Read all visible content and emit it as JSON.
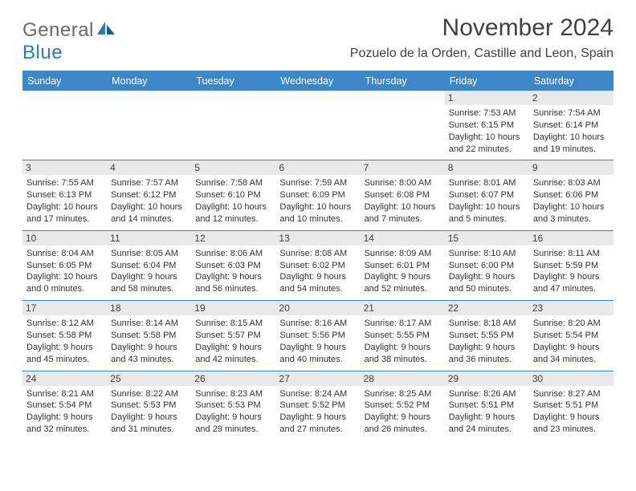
{
  "logo": {
    "text1": "General",
    "text2": "Blue"
  },
  "title": "November 2024",
  "location": "Pozuelo de la Orden, Castille and Leon, Spain",
  "colors": {
    "header_bg": "#3b87c8",
    "header_fg": "#ffffff",
    "daynum_bg": "#e9e9e9",
    "text": "#404040",
    "row_border": "#3b87c8"
  },
  "day_names": [
    "Sunday",
    "Monday",
    "Tuesday",
    "Wednesday",
    "Thursday",
    "Friday",
    "Saturday"
  ],
  "weeks": [
    [
      null,
      null,
      null,
      null,
      null,
      {
        "n": "1",
        "sunrise": "Sunrise: 7:53 AM",
        "sunset": "Sunset: 6:15 PM",
        "daylight1": "Daylight: 10 hours",
        "daylight2": "and 22 minutes."
      },
      {
        "n": "2",
        "sunrise": "Sunrise: 7:54 AM",
        "sunset": "Sunset: 6:14 PM",
        "daylight1": "Daylight: 10 hours",
        "daylight2": "and 19 minutes."
      }
    ],
    [
      {
        "n": "3",
        "sunrise": "Sunrise: 7:55 AM",
        "sunset": "Sunset: 6:13 PM",
        "daylight1": "Daylight: 10 hours",
        "daylight2": "and 17 minutes."
      },
      {
        "n": "4",
        "sunrise": "Sunrise: 7:57 AM",
        "sunset": "Sunset: 6:12 PM",
        "daylight1": "Daylight: 10 hours",
        "daylight2": "and 14 minutes."
      },
      {
        "n": "5",
        "sunrise": "Sunrise: 7:58 AM",
        "sunset": "Sunset: 6:10 PM",
        "daylight1": "Daylight: 10 hours",
        "daylight2": "and 12 minutes."
      },
      {
        "n": "6",
        "sunrise": "Sunrise: 7:59 AM",
        "sunset": "Sunset: 6:09 PM",
        "daylight1": "Daylight: 10 hours",
        "daylight2": "and 10 minutes."
      },
      {
        "n": "7",
        "sunrise": "Sunrise: 8:00 AM",
        "sunset": "Sunset: 6:08 PM",
        "daylight1": "Daylight: 10 hours",
        "daylight2": "and 7 minutes."
      },
      {
        "n": "8",
        "sunrise": "Sunrise: 8:01 AM",
        "sunset": "Sunset: 6:07 PM",
        "daylight1": "Daylight: 10 hours",
        "daylight2": "and 5 minutes."
      },
      {
        "n": "9",
        "sunrise": "Sunrise: 8:03 AM",
        "sunset": "Sunset: 6:06 PM",
        "daylight1": "Daylight: 10 hours",
        "daylight2": "and 3 minutes."
      }
    ],
    [
      {
        "n": "10",
        "sunrise": "Sunrise: 8:04 AM",
        "sunset": "Sunset: 6:05 PM",
        "daylight1": "Daylight: 10 hours",
        "daylight2": "and 0 minutes."
      },
      {
        "n": "11",
        "sunrise": "Sunrise: 8:05 AM",
        "sunset": "Sunset: 6:04 PM",
        "daylight1": "Daylight: 9 hours",
        "daylight2": "and 58 minutes."
      },
      {
        "n": "12",
        "sunrise": "Sunrise: 8:06 AM",
        "sunset": "Sunset: 6:03 PM",
        "daylight1": "Daylight: 9 hours",
        "daylight2": "and 56 minutes."
      },
      {
        "n": "13",
        "sunrise": "Sunrise: 8:08 AM",
        "sunset": "Sunset: 6:02 PM",
        "daylight1": "Daylight: 9 hours",
        "daylight2": "and 54 minutes."
      },
      {
        "n": "14",
        "sunrise": "Sunrise: 8:09 AM",
        "sunset": "Sunset: 6:01 PM",
        "daylight1": "Daylight: 9 hours",
        "daylight2": "and 52 minutes."
      },
      {
        "n": "15",
        "sunrise": "Sunrise: 8:10 AM",
        "sunset": "Sunset: 6:00 PM",
        "daylight1": "Daylight: 9 hours",
        "daylight2": "and 50 minutes."
      },
      {
        "n": "16",
        "sunrise": "Sunrise: 8:11 AM",
        "sunset": "Sunset: 5:59 PM",
        "daylight1": "Daylight: 9 hours",
        "daylight2": "and 47 minutes."
      }
    ],
    [
      {
        "n": "17",
        "sunrise": "Sunrise: 8:12 AM",
        "sunset": "Sunset: 5:58 PM",
        "daylight1": "Daylight: 9 hours",
        "daylight2": "and 45 minutes."
      },
      {
        "n": "18",
        "sunrise": "Sunrise: 8:14 AM",
        "sunset": "Sunset: 5:58 PM",
        "daylight1": "Daylight: 9 hours",
        "daylight2": "and 43 minutes."
      },
      {
        "n": "19",
        "sunrise": "Sunrise: 8:15 AM",
        "sunset": "Sunset: 5:57 PM",
        "daylight1": "Daylight: 9 hours",
        "daylight2": "and 42 minutes."
      },
      {
        "n": "20",
        "sunrise": "Sunrise: 8:16 AM",
        "sunset": "Sunset: 5:56 PM",
        "daylight1": "Daylight: 9 hours",
        "daylight2": "and 40 minutes."
      },
      {
        "n": "21",
        "sunrise": "Sunrise: 8:17 AM",
        "sunset": "Sunset: 5:55 PM",
        "daylight1": "Daylight: 9 hours",
        "daylight2": "and 38 minutes."
      },
      {
        "n": "22",
        "sunrise": "Sunrise: 8:18 AM",
        "sunset": "Sunset: 5:55 PM",
        "daylight1": "Daylight: 9 hours",
        "daylight2": "and 36 minutes."
      },
      {
        "n": "23",
        "sunrise": "Sunrise: 8:20 AM",
        "sunset": "Sunset: 5:54 PM",
        "daylight1": "Daylight: 9 hours",
        "daylight2": "and 34 minutes."
      }
    ],
    [
      {
        "n": "24",
        "sunrise": "Sunrise: 8:21 AM",
        "sunset": "Sunset: 5:54 PM",
        "daylight1": "Daylight: 9 hours",
        "daylight2": "and 32 minutes."
      },
      {
        "n": "25",
        "sunrise": "Sunrise: 8:22 AM",
        "sunset": "Sunset: 5:53 PM",
        "daylight1": "Daylight: 9 hours",
        "daylight2": "and 31 minutes."
      },
      {
        "n": "26",
        "sunrise": "Sunrise: 8:23 AM",
        "sunset": "Sunset: 5:53 PM",
        "daylight1": "Daylight: 9 hours",
        "daylight2": "and 29 minutes."
      },
      {
        "n": "27",
        "sunrise": "Sunrise: 8:24 AM",
        "sunset": "Sunset: 5:52 PM",
        "daylight1": "Daylight: 9 hours",
        "daylight2": "and 27 minutes."
      },
      {
        "n": "28",
        "sunrise": "Sunrise: 8:25 AM",
        "sunset": "Sunset: 5:52 PM",
        "daylight1": "Daylight: 9 hours",
        "daylight2": "and 26 minutes."
      },
      {
        "n": "29",
        "sunrise": "Sunrise: 8:26 AM",
        "sunset": "Sunset: 5:51 PM",
        "daylight1": "Daylight: 9 hours",
        "daylight2": "and 24 minutes."
      },
      {
        "n": "30",
        "sunrise": "Sunrise: 8:27 AM",
        "sunset": "Sunset: 5:51 PM",
        "daylight1": "Daylight: 9 hours",
        "daylight2": "and 23 minutes."
      }
    ]
  ]
}
